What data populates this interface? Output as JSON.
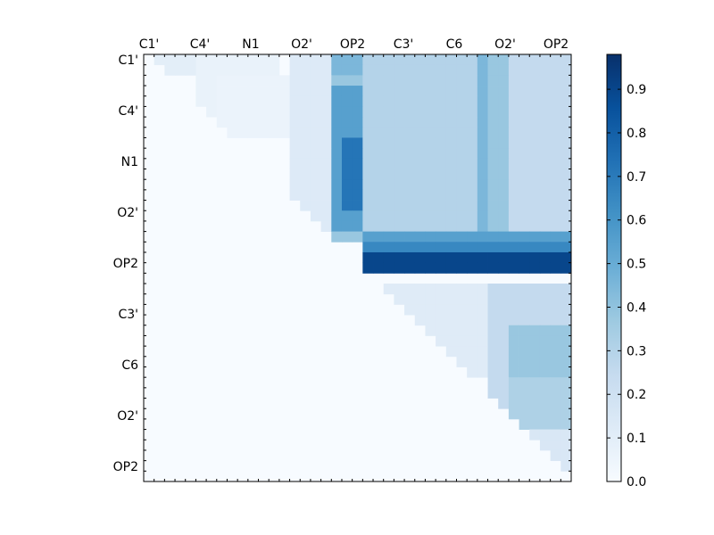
{
  "chart_data": {
    "type": "heatmap",
    "title": "",
    "xlabel": "",
    "ylabel": "",
    "x_tick_labels": [
      "C1'",
      "C4'",
      "N1",
      "O2'",
      "OP2",
      "C3'",
      "C6",
      "O2'",
      "OP2"
    ],
    "y_tick_labels": [
      "C1'",
      "C4'",
      "N1",
      "O2'",
      "OP2",
      "C3'",
      "C6",
      "O2'",
      "OP2"
    ],
    "colorbar": {
      "min": 0.0,
      "max": 0.98,
      "ticks": [
        "0.0",
        "0.1",
        "0.2",
        "0.3",
        "0.4",
        "0.5",
        "0.6",
        "0.7",
        "0.8",
        "0.9"
      ],
      "colormap": "Blues"
    },
    "grid": false,
    "matrix_size": 41,
    "cells": [
      {
        "rows": [
          0,
          2
        ],
        "cols": [
          1,
          6
        ],
        "value": 0.1
      },
      {
        "rows": [
          0,
          8
        ],
        "cols": [
          5,
          13
        ],
        "value": 0.07
      },
      {
        "rows": [
          2,
          8
        ],
        "cols": [
          7,
          14
        ],
        "value": 0.06
      },
      {
        "rows": [
          0,
          18
        ],
        "cols": [
          14,
          18
        ],
        "value": 0.13
      },
      {
        "rows": [
          0,
          18
        ],
        "cols": [
          18,
          21
        ],
        "value": 0.38
      },
      {
        "rows": [
          0,
          2
        ],
        "cols": [
          18,
          21
        ],
        "value": 0.45
      },
      {
        "rows": [
          3,
          6
        ],
        "cols": [
          18,
          21
        ],
        "value": 0.55
      },
      {
        "rows": [
          6,
          17
        ],
        "cols": [
          18,
          21
        ],
        "value": 0.55
      },
      {
        "rows": [
          8,
          15
        ],
        "cols": [
          19,
          21
        ],
        "value": 0.72
      },
      {
        "rows": [
          0,
          17
        ],
        "cols": [
          21,
          32
        ],
        "value": 0.3
      },
      {
        "rows": [
          0,
          17
        ],
        "cols": [
          32,
          33
        ],
        "value": 0.45
      },
      {
        "rows": [
          0,
          17
        ],
        "cols": [
          33,
          35
        ],
        "value": 0.38
      },
      {
        "rows": [
          0,
          17
        ],
        "cols": [
          35,
          41
        ],
        "value": 0.25
      },
      {
        "rows": [
          17,
          18
        ],
        "cols": [
          21,
          41
        ],
        "value": 0.55
      },
      {
        "rows": [
          18,
          19
        ],
        "cols": [
          21,
          41
        ],
        "value": 0.65
      },
      {
        "rows": [
          19,
          21
        ],
        "cols": [
          21,
          41
        ],
        "value": 0.9
      },
      {
        "rows": [
          22,
          31
        ],
        "cols": [
          23,
          33
        ],
        "value": 0.12
      },
      {
        "rows": [
          22,
          36
        ],
        "cols": [
          33,
          41
        ],
        "value": 0.25
      },
      {
        "rows": [
          26,
          31
        ],
        "cols": [
          35,
          41
        ],
        "value": 0.38
      },
      {
        "rows": [
          31,
          36
        ],
        "cols": [
          35,
          41
        ],
        "value": 0.32
      },
      {
        "rows": [
          36,
          41
        ],
        "cols": [
          36,
          41
        ],
        "value": 0.15
      }
    ]
  }
}
